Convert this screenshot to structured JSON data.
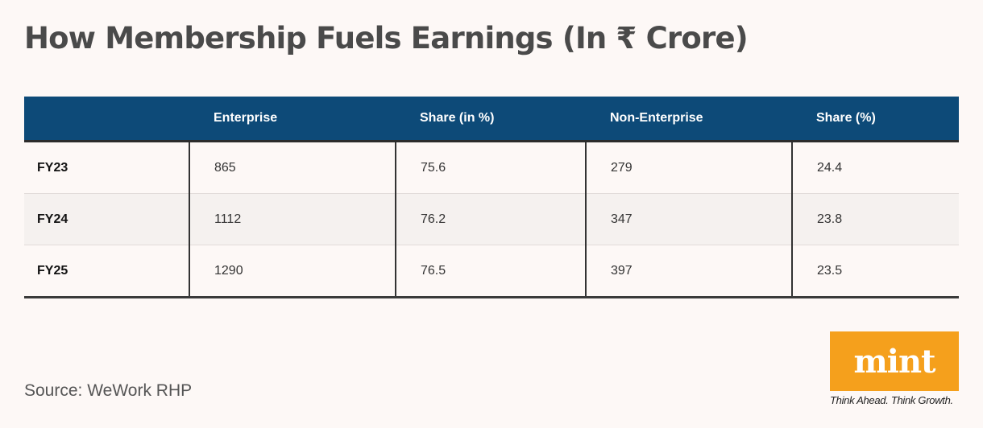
{
  "title": "How Membership Fuels Earnings (In ₹ Crore)",
  "source": "Source: WeWork RHP",
  "brand": {
    "logo_text": "mint",
    "tagline": "Think Ahead. Think Growth."
  },
  "colors": {
    "header_bg": "#0d4a78",
    "logo_bg": "#f5a01c",
    "title": "#4a4a4a"
  },
  "chart_data": {
    "type": "table",
    "columns": [
      "",
      "Enterprise",
      "Share (in %)",
      "Non-Enterprise",
      "Share (%)"
    ],
    "rows": [
      [
        "FY23",
        "865",
        "75.6",
        "279",
        "24.4"
      ],
      [
        "FY24",
        "1112",
        "76.2",
        "347",
        "23.8"
      ],
      [
        "FY25",
        "1290",
        "76.5",
        "397",
        "23.5"
      ]
    ]
  }
}
